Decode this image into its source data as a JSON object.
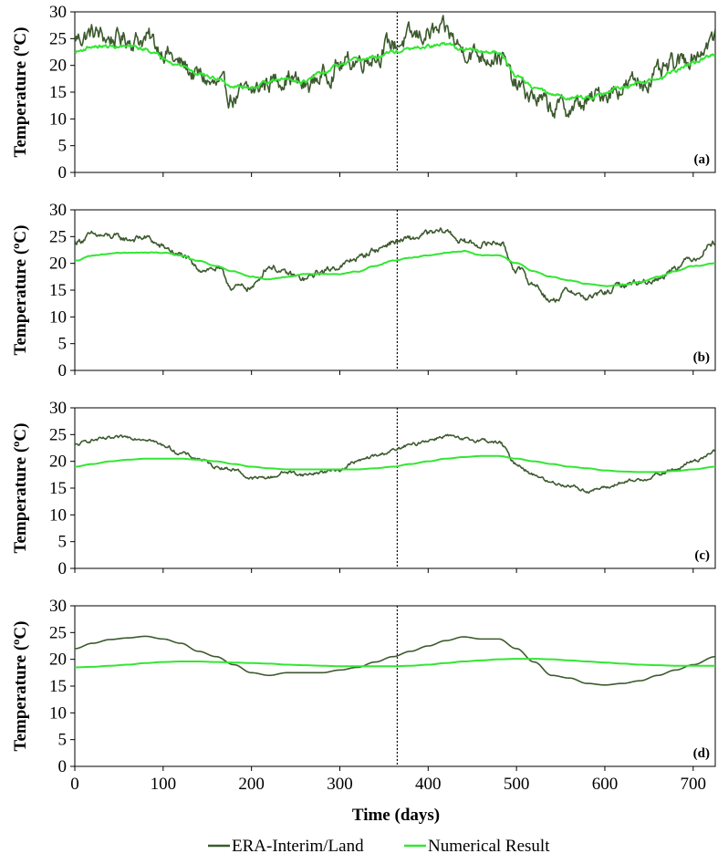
{
  "colors": {
    "era": "#3d5a2e",
    "numerical": "#33e633",
    "axis": "#000000",
    "marker": "#000000"
  },
  "legend": {
    "items": [
      {
        "label": "ERA-Interim/Land",
        "color": "#3d5a2e"
      },
      {
        "label": "Numerical Result",
        "color": "#33e633"
      }
    ]
  },
  "chart_data": [
    {
      "type": "line",
      "panel_label": "(a)",
      "ylabel": "Temperature (ºC)",
      "xlabel": "",
      "xlim": [
        0,
        725
      ],
      "ylim": [
        0,
        30
      ],
      "yticks": [
        "0",
        "5",
        "10",
        "15",
        "20",
        "25",
        "30"
      ],
      "xticks": [],
      "grid": false,
      "vertical_marker_x": 365,
      "series": [
        {
          "name": "ERA-Interim/Land",
          "noise": 1.4,
          "x": [
            0,
            20,
            40,
            60,
            80,
            100,
            120,
            140,
            160,
            180,
            200,
            220,
            240,
            260,
            280,
            300,
            320,
            340,
            360,
            380,
            400,
            420,
            440,
            460,
            480,
            500,
            520,
            540,
            560,
            580,
            600,
            620,
            640,
            660,
            680,
            700,
            725
          ],
          "y": [
            25,
            26,
            25,
            25,
            25,
            23,
            20,
            18,
            16,
            14,
            15,
            17,
            18,
            16,
            18,
            20,
            21,
            22,
            24,
            25,
            26,
            26,
            23,
            22,
            22,
            16,
            14,
            12,
            12,
            13,
            15,
            16,
            17,
            18,
            20,
            22,
            25
          ]
        },
        {
          "name": "Numerical Result",
          "noise": 0.25,
          "x": [
            0,
            20,
            40,
            60,
            80,
            100,
            120,
            140,
            160,
            180,
            200,
            220,
            240,
            260,
            280,
            300,
            320,
            340,
            360,
            380,
            400,
            420,
            440,
            460,
            480,
            500,
            520,
            540,
            560,
            580,
            600,
            620,
            640,
            660,
            680,
            700,
            725
          ],
          "y": [
            22.5,
            23.5,
            23.5,
            23.5,
            23,
            21.5,
            20,
            18.5,
            17.5,
            16,
            16,
            17,
            17.5,
            17,
            18.5,
            20,
            21,
            21.5,
            22.5,
            23,
            23.5,
            24,
            23,
            22.5,
            22.5,
            18,
            16,
            14.5,
            14,
            14,
            15,
            16,
            16.5,
            17.5,
            19,
            20.5,
            22
          ]
        }
      ]
    },
    {
      "type": "line",
      "panel_label": "(b)",
      "ylabel": "Temperature (ºC)",
      "xlabel": "",
      "xlim": [
        0,
        725
      ],
      "ylim": [
        0,
        30
      ],
      "yticks": [
        "0",
        "5",
        "10",
        "15",
        "20",
        "25",
        "30"
      ],
      "xticks": [],
      "grid": false,
      "vertical_marker_x": 365,
      "series": [
        {
          "name": "ERA-Interim/Land",
          "noise": 0.45,
          "x": [
            0,
            20,
            40,
            60,
            80,
            100,
            120,
            140,
            160,
            180,
            200,
            220,
            240,
            260,
            280,
            300,
            320,
            340,
            360,
            380,
            400,
            420,
            440,
            460,
            480,
            500,
            520,
            540,
            560,
            580,
            600,
            620,
            640,
            660,
            680,
            700,
            725
          ],
          "y": [
            24,
            25.2,
            25,
            24.5,
            24.8,
            23,
            21.5,
            19,
            19,
            15.5,
            15.5,
            19.5,
            18,
            17,
            18.5,
            19.5,
            21,
            22.5,
            24,
            24.5,
            25.5,
            26,
            24,
            23.5,
            24,
            19,
            16,
            13,
            15,
            13.5,
            14.5,
            16,
            16.5,
            17,
            19.5,
            21,
            24
          ]
        },
        {
          "name": "Numerical Result",
          "noise": 0.05,
          "x": [
            0,
            20,
            40,
            60,
            80,
            100,
            120,
            140,
            160,
            180,
            200,
            220,
            240,
            260,
            280,
            300,
            320,
            340,
            360,
            380,
            400,
            420,
            440,
            460,
            480,
            500,
            520,
            540,
            560,
            580,
            600,
            620,
            640,
            660,
            680,
            700,
            725
          ],
          "y": [
            20.5,
            21.5,
            21.8,
            22,
            22,
            22,
            21.5,
            20.5,
            19.5,
            18.5,
            17.5,
            17,
            17.5,
            18,
            18,
            18,
            18.5,
            19.5,
            20.5,
            21,
            21.5,
            22,
            22.3,
            21.5,
            21.5,
            20,
            18.5,
            17.5,
            16.8,
            16.2,
            15.8,
            16,
            16.5,
            17.5,
            18.5,
            19.5,
            20
          ]
        }
      ]
    },
    {
      "type": "line",
      "panel_label": "(c)",
      "ylabel": "Temperature (ºC)",
      "xlabel": "",
      "xlim": [
        0,
        725
      ],
      "ylim": [
        0,
        30
      ],
      "yticks": [
        "0",
        "5",
        "10",
        "15",
        "20",
        "25",
        "30"
      ],
      "xticks": [],
      "grid": false,
      "vertical_marker_x": 365,
      "series": [
        {
          "name": "ERA-Interim/Land",
          "noise": 0.25,
          "x": [
            0,
            20,
            40,
            60,
            80,
            100,
            120,
            140,
            160,
            180,
            200,
            220,
            240,
            260,
            280,
            300,
            320,
            340,
            360,
            380,
            400,
            420,
            440,
            460,
            480,
            500,
            520,
            540,
            560,
            580,
            600,
            620,
            640,
            660,
            680,
            700,
            725
          ],
          "y": [
            23,
            24,
            24.2,
            24.5,
            24.3,
            23,
            21.5,
            20.5,
            19,
            18.5,
            16.8,
            17,
            18,
            17.5,
            18,
            18.5,
            20,
            21,
            22,
            23,
            24,
            24.8,
            24,
            24,
            23.5,
            19.5,
            17.5,
            16,
            15.5,
            14.5,
            15,
            16,
            16.5,
            17.5,
            18.5,
            20,
            22
          ]
        },
        {
          "name": "Numerical Result",
          "noise": 0.0,
          "x": [
            0,
            20,
            40,
            60,
            80,
            100,
            120,
            140,
            160,
            180,
            200,
            220,
            240,
            260,
            280,
            300,
            320,
            340,
            360,
            380,
            400,
            420,
            440,
            460,
            480,
            500,
            520,
            540,
            560,
            580,
            600,
            620,
            640,
            660,
            680,
            700,
            725
          ],
          "y": [
            19,
            19.5,
            20,
            20.3,
            20.5,
            20.5,
            20.5,
            20.3,
            20,
            19.5,
            19,
            18.7,
            18.5,
            18.5,
            18.5,
            18.5,
            18.5,
            18.7,
            19,
            19.5,
            20,
            20.5,
            20.8,
            21,
            21,
            20.5,
            20,
            19.5,
            19,
            18.7,
            18.3,
            18.1,
            18,
            18,
            18.2,
            18.5,
            19
          ]
        }
      ]
    },
    {
      "type": "line",
      "panel_label": "(d)",
      "ylabel": "Temperature (ºC)",
      "xlabel": "Time (days)",
      "xlim": [
        0,
        725
      ],
      "ylim": [
        0,
        30
      ],
      "yticks": [
        "0",
        "5",
        "10",
        "15",
        "20",
        "25",
        "30"
      ],
      "xticks": [
        "0",
        "100",
        "200",
        "300",
        "400",
        "500",
        "600",
        "700"
      ],
      "grid": false,
      "vertical_marker_x": 365,
      "series": [
        {
          "name": "ERA-Interim/Land",
          "noise": 0.0,
          "x": [
            0,
            20,
            40,
            60,
            80,
            100,
            120,
            140,
            160,
            180,
            200,
            220,
            240,
            260,
            280,
            300,
            320,
            340,
            360,
            380,
            400,
            420,
            440,
            460,
            480,
            500,
            520,
            540,
            560,
            580,
            600,
            620,
            640,
            660,
            680,
            700,
            725
          ],
          "y": [
            22,
            23,
            23.7,
            24,
            24.3,
            23.8,
            23,
            21.5,
            20.5,
            19,
            17.5,
            17,
            17.5,
            17.5,
            17.5,
            18,
            18.5,
            19.5,
            20.5,
            21.5,
            22.5,
            23.5,
            24.2,
            23.8,
            23.8,
            22,
            19.5,
            17,
            16.5,
            15.5,
            15.2,
            15.5,
            16,
            17,
            18,
            19,
            20.5
          ]
        },
        {
          "name": "Numerical Result",
          "noise": 0.0,
          "x": [
            0,
            20,
            40,
            60,
            80,
            100,
            120,
            140,
            160,
            180,
            200,
            220,
            240,
            260,
            280,
            300,
            320,
            340,
            360,
            380,
            400,
            420,
            440,
            460,
            480,
            500,
            520,
            540,
            560,
            580,
            600,
            620,
            640,
            660,
            680,
            700,
            725
          ],
          "y": [
            18.5,
            18.6,
            18.8,
            19,
            19.3,
            19.5,
            19.6,
            19.6,
            19.5,
            19.4,
            19.3,
            19.2,
            19,
            18.9,
            18.8,
            18.7,
            18.7,
            18.7,
            18.7,
            18.8,
            19,
            19.3,
            19.6,
            19.8,
            20,
            20.1,
            20.1,
            20,
            19.8,
            19.6,
            19.4,
            19.2,
            19,
            18.9,
            18.8,
            18.8,
            18.8
          ]
        }
      ]
    }
  ]
}
